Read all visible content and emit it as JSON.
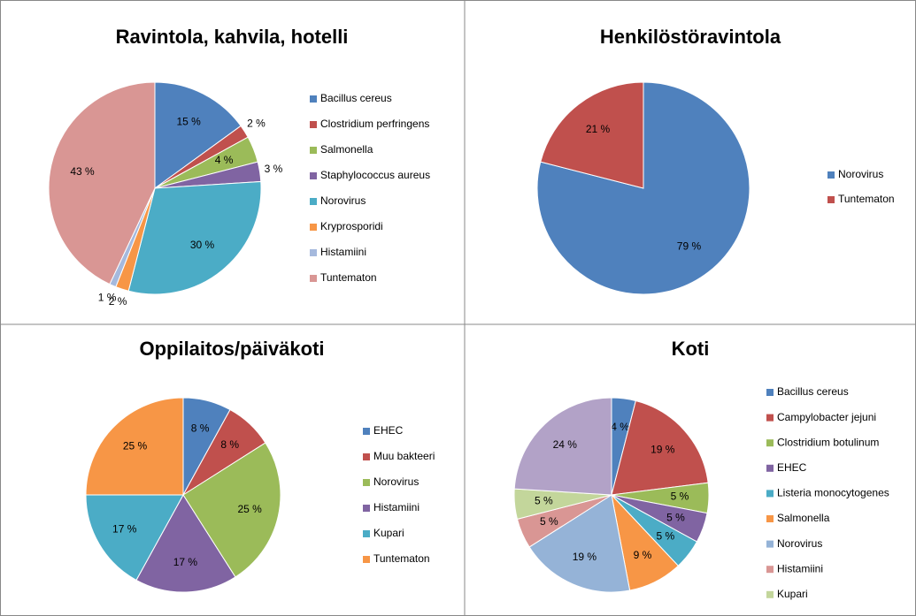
{
  "chart_data": [
    {
      "type": "pie",
      "title": "Ravintola, kahvila, hotelli",
      "categories": [
        "Bacillus cereus",
        "Clostridium perfringens",
        "Salmonella",
        "Staphylococcus aureus",
        "Norovirus",
        "Kryprosporidi",
        "Histamiini",
        "Tuntematon"
      ],
      "values": [
        15,
        2,
        4,
        3,
        30,
        2,
        1,
        43
      ],
      "value_labels": [
        "15 %",
        "2 %",
        "4 %",
        "3 %",
        "30 %",
        "2 %",
        "1 %",
        "43 %"
      ],
      "colors": [
        "#4f81bd",
        "#c0504d",
        "#9bbb59",
        "#8064a2",
        "#4bacc6",
        "#f79646",
        "#a5b9dd",
        "#d99694"
      ]
    },
    {
      "type": "pie",
      "title": "Henkilöstöravintola",
      "categories": [
        "Norovirus",
        "Tuntematon"
      ],
      "values": [
        79,
        21
      ],
      "value_labels": [
        "79 %",
        "21 %"
      ],
      "colors": [
        "#4f81bd",
        "#c0504d"
      ]
    },
    {
      "type": "pie",
      "title": "Oppilaitos/päiväkoti",
      "categories": [
        "EHEC",
        "Muu bakteeri",
        "Norovirus",
        "Histamiini",
        "Kupari",
        "Tuntematon"
      ],
      "values": [
        8,
        8,
        25,
        17,
        17,
        25
      ],
      "value_labels": [
        "8 %",
        "8 %",
        "25 %",
        "17 %",
        "17 %",
        "25 %"
      ],
      "colors": [
        "#4f81bd",
        "#c0504d",
        "#9bbb59",
        "#8064a2",
        "#4bacc6",
        "#f79646"
      ]
    },
    {
      "type": "pie",
      "title": "Koti",
      "categories": [
        "Bacillus cereus",
        "Campylobacter jejuni",
        "Clostridium botulinum",
        "EHEC",
        "Listeria monocytogenes",
        "Salmonella",
        "Norovirus",
        "Histamiini",
        "Kupari",
        null
      ],
      "values": [
        4,
        19,
        5,
        5,
        5,
        9,
        19,
        5,
        5,
        24
      ],
      "value_labels": [
        "4 %",
        "19 %",
        "5 %",
        "5 %",
        "5 %",
        "9 %",
        "19 %",
        "5 %",
        "5 %",
        "24 %"
      ],
      "colors": [
        "#4f81bd",
        "#c0504d",
        "#9bbb59",
        "#8064a2",
        "#4bacc6",
        "#f79646",
        "#95b3d7",
        "#d99694",
        "#c3d69b",
        "#b2a2c7"
      ]
    }
  ]
}
